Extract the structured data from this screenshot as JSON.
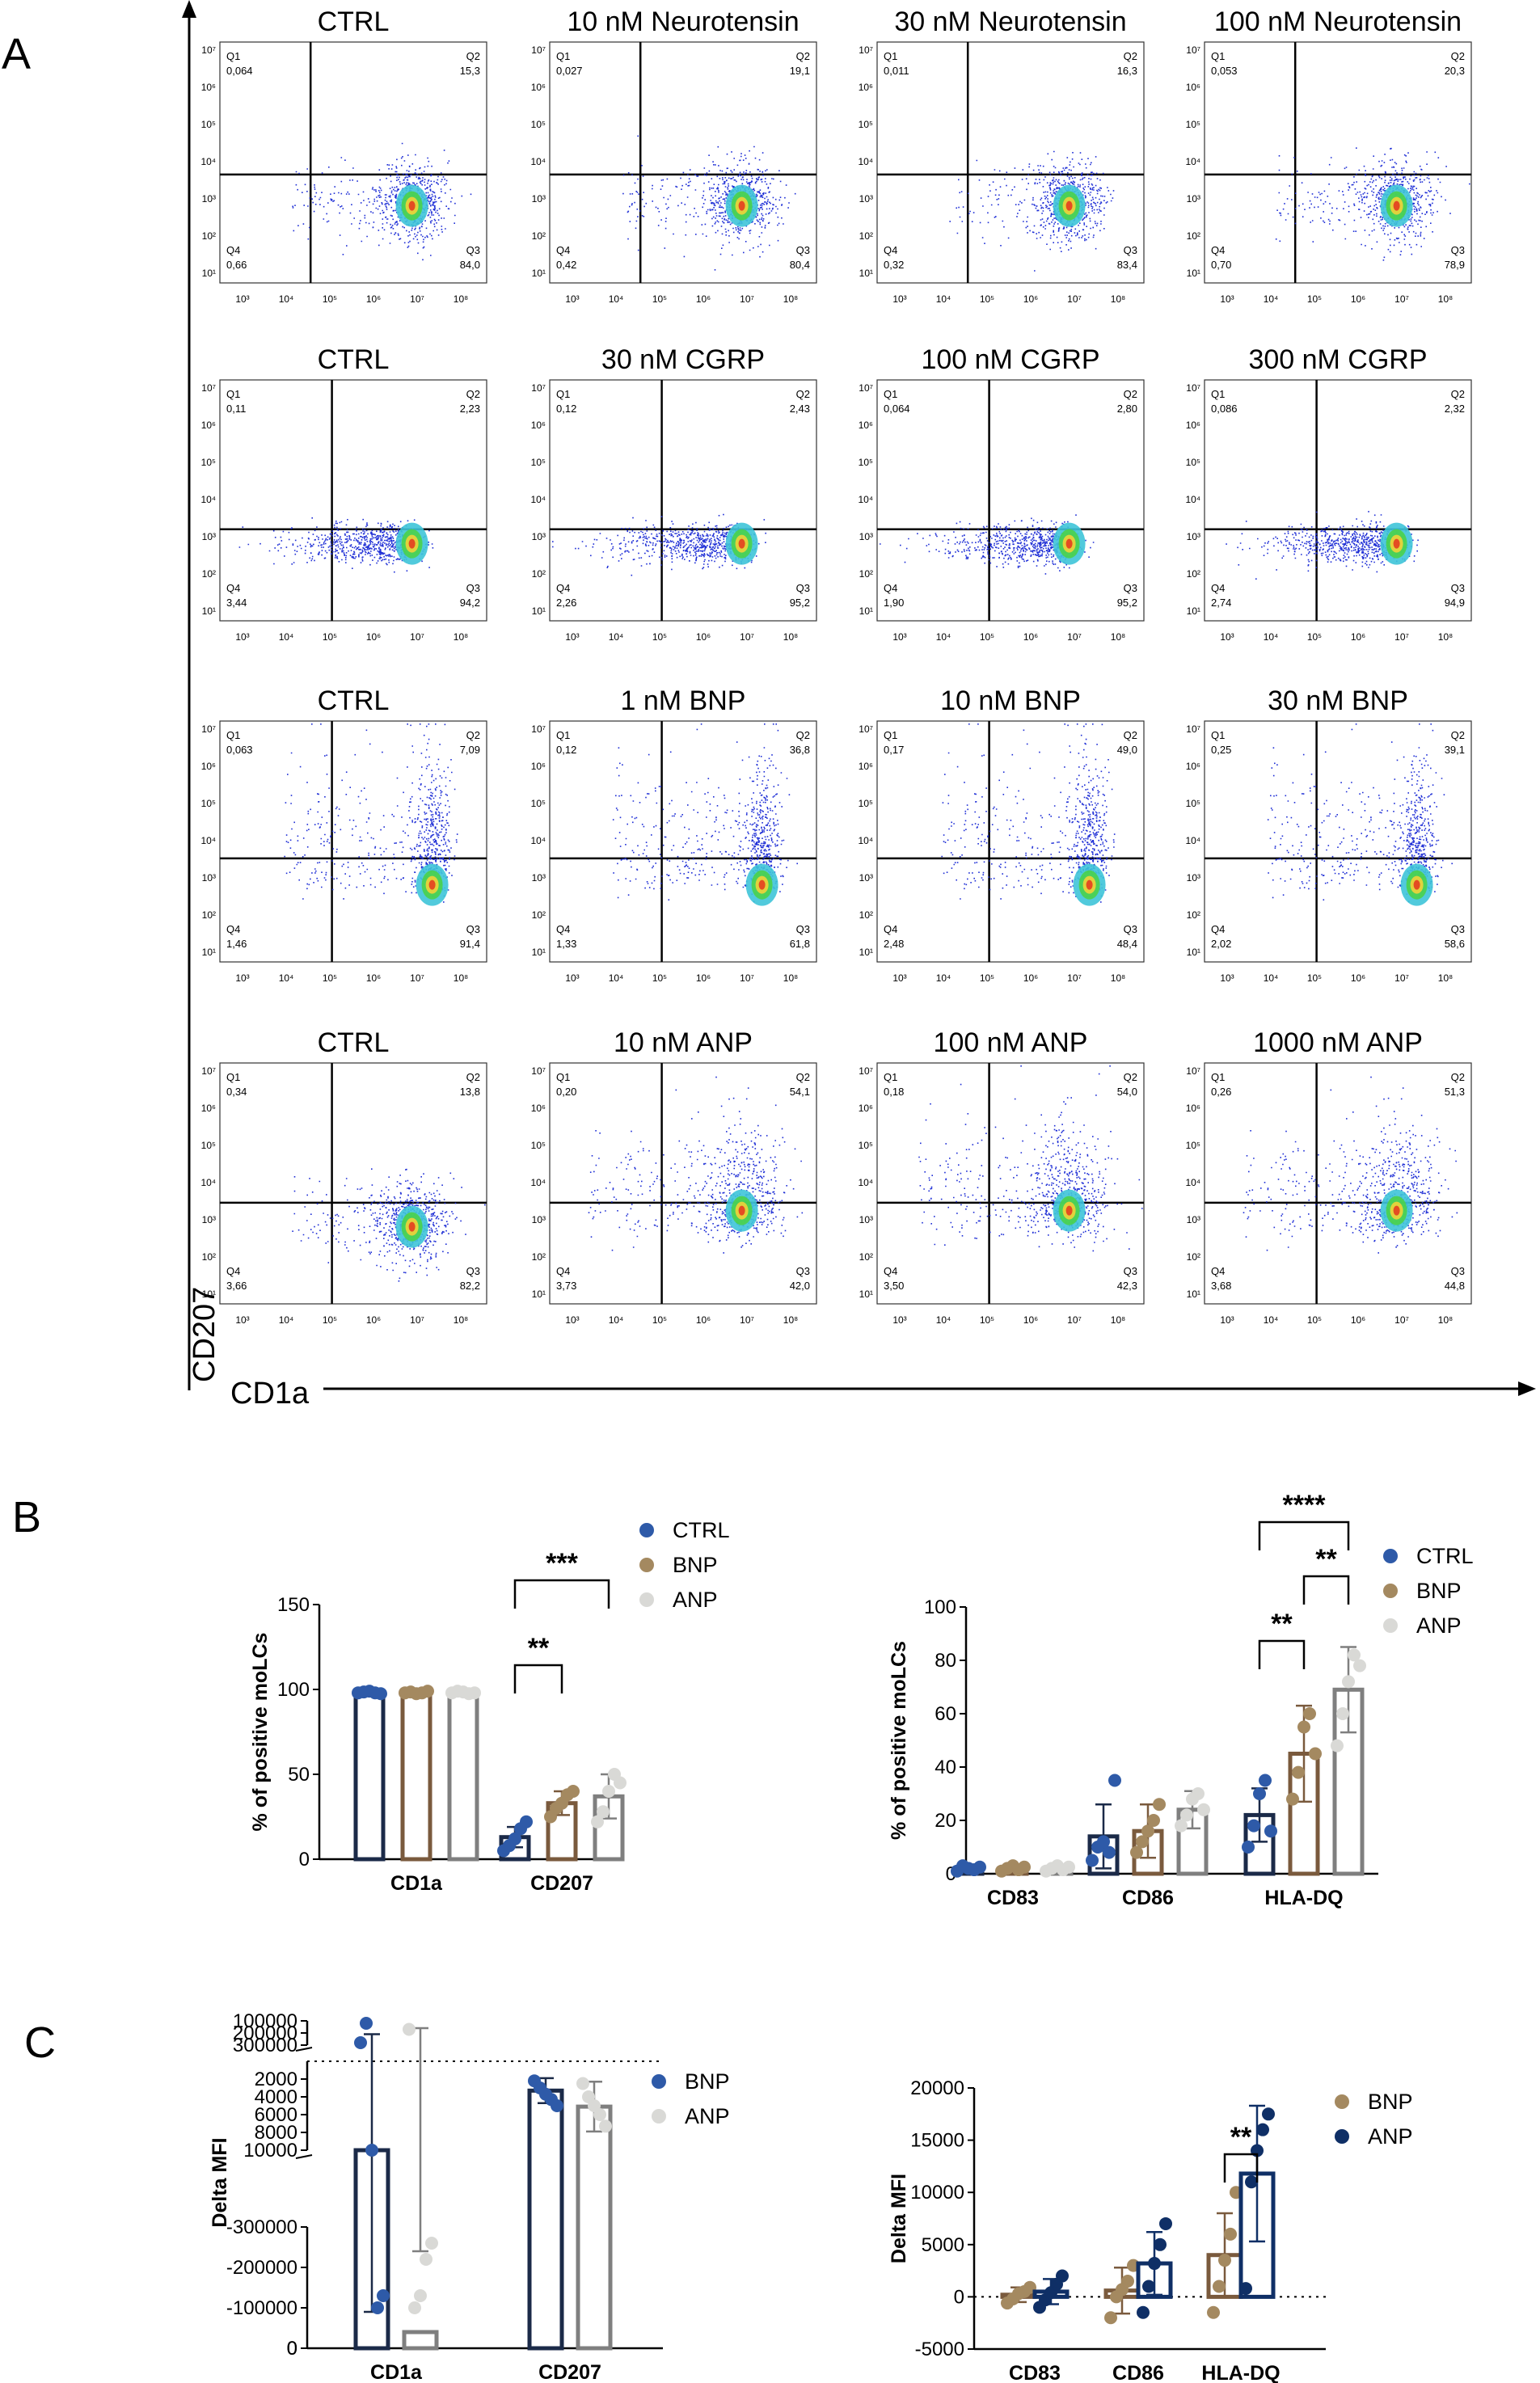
{
  "panels": {
    "a": "A",
    "b": "B",
    "c": "C"
  },
  "flow_axes": {
    "y_label": "CD207",
    "x_label": "CD1a"
  },
  "flow_grid": {
    "rows": [
      {
        "plots": [
          {
            "title": "CTRL",
            "q1": "0,064",
            "q2": "15,3",
            "q3": "84,0",
            "q4": "0,66"
          },
          {
            "title": "10 nM Neurotensin",
            "q1": "0,027",
            "q2": "19,1",
            "q3": "80,4",
            "q4": "0,42"
          },
          {
            "title": "30 nM Neurotensin",
            "q1": "0,011",
            "q2": "16,3",
            "q3": "83,4",
            "q4": "0,32"
          },
          {
            "title": "100 nM Neurotensin",
            "q1": "0,053",
            "q2": "20,3",
            "q3": "78,9",
            "q4": "0,70"
          }
        ]
      },
      {
        "plots": [
          {
            "title": "CTRL",
            "q1": "0,11",
            "q2": "2,23",
            "q3": "94,2",
            "q4": "3,44"
          },
          {
            "title": "30 nM CGRP",
            "q1": "0,12",
            "q2": "2,43",
            "q3": "95,2",
            "q4": "2,26"
          },
          {
            "title": "100 nM CGRP",
            "q1": "0,064",
            "q2": "2,80",
            "q3": "95,2",
            "q4": "1,90"
          },
          {
            "title": "300 nM CGRP",
            "q1": "0,086",
            "q2": "2,32",
            "q3": "94,9",
            "q4": "2,74"
          }
        ]
      },
      {
        "plots": [
          {
            "title": "CTRL",
            "q1": "0,063",
            "q2": "7,09",
            "q3": "91,4",
            "q4": "1,46"
          },
          {
            "title": "1 nM BNP",
            "q1": "0,12",
            "q2": "36,8",
            "q3": "61,8",
            "q4": "1,33"
          },
          {
            "title": "10 nM BNP",
            "q1": "0,17",
            "q2": "49,0",
            "q3": "48,4",
            "q4": "2,48"
          },
          {
            "title": "30 nM BNP",
            "q1": "0,25",
            "q2": "39,1",
            "q3": "58,6",
            "q4": "2,02"
          }
        ]
      },
      {
        "plots": [
          {
            "title": "CTRL",
            "q1": "0,34",
            "q2": "13,8",
            "q3": "82,2",
            "q4": "3,66"
          },
          {
            "title": "10 nM ANP",
            "q1": "0,20",
            "q2": "54,1",
            "q3": "42,0",
            "q4": "3,73"
          },
          {
            "title": "100 nM ANP",
            "q1": "0,18",
            "q2": "54,0",
            "q3": "42,3",
            "q4": "3,50"
          },
          {
            "title": "1000 nM ANP",
            "q1": "0,26",
            "q2": "51,3",
            "q3": "44,8",
            "q4": "3,68"
          }
        ]
      }
    ]
  },
  "colors": {
    "ctrl": "#2e5aa8",
    "bnp": "#a48960",
    "anp": "#d9d9d6",
    "ctrl_bar": "#1b2a48",
    "bnp_bar": "#7a5a3d",
    "anp_bar": "#7f7f7f",
    "navy": "#0f2f66"
  },
  "chart_data": [
    {
      "id": "B-left",
      "type": "bar",
      "ylabel": "% of positive moLCs",
      "xlabel": "",
      "ylim": [
        0,
        150
      ],
      "yticks": [
        "0",
        "50",
        "100",
        "150"
      ],
      "categories": [
        "CD1a",
        "CD207"
      ],
      "legend": [
        "CTRL",
        "BNP",
        "ANP"
      ],
      "series": [
        {
          "name": "CTRL",
          "values": [
            98,
            13
          ],
          "err": [
            1,
            6
          ],
          "points": [
            [
              98,
              98.5,
              99,
              98,
              97.5
            ],
            [
              5,
              8,
              12,
              18,
              22
            ]
          ]
        },
        {
          "name": "BNP",
          "values": [
            98,
            33
          ],
          "err": [
            1,
            7
          ],
          "points": [
            [
              98,
              98.5,
              97.5,
              98,
              99
            ],
            [
              25,
              30,
              33,
              38,
              40
            ]
          ]
        },
        {
          "name": "ANP",
          "values": [
            98,
            37
          ],
          "err": [
            1,
            13
          ],
          "points": [
            [
              98,
              99,
              98.5,
              97.5,
              98
            ],
            [
              22,
              28,
              40,
              50,
              45
            ]
          ]
        }
      ],
      "significance": [
        {
          "label": "**",
          "category": "CD207",
          "from": "CTRL",
          "to": "BNP"
        },
        {
          "label": "***",
          "category": "CD207",
          "from": "CTRL",
          "to": "ANP"
        }
      ]
    },
    {
      "id": "B-right",
      "type": "bar",
      "ylabel": "% of positive moLCs",
      "xlabel": "",
      "ylim": [
        0,
        100
      ],
      "yticks": [
        "0",
        "20",
        "40",
        "60",
        "80",
        "100"
      ],
      "categories": [
        "CD83",
        "CD86",
        "HLA-DQ"
      ],
      "legend": [
        "CTRL",
        "BNP",
        "ANP"
      ],
      "series": [
        {
          "name": "CTRL",
          "values": [
            2,
            14,
            22
          ],
          "err": [
            1,
            12,
            10
          ],
          "points": [
            [
              1,
              3,
              2,
              1.5,
              2.5
            ],
            [
              5,
              10,
              12,
              8,
              35
            ],
            [
              10,
              18,
              30,
              35,
              16
            ]
          ]
        },
        {
          "name": "BNP",
          "values": [
            2,
            16,
            45
          ],
          "err": [
            1,
            10,
            18
          ],
          "points": [
            [
              1,
              2,
              3,
              1.5,
              2.5
            ],
            [
              8,
              12,
              16,
              20,
              26
            ],
            [
              28,
              38,
              55,
              60,
              45
            ]
          ]
        },
        {
          "name": "ANP",
          "values": [
            2,
            24,
            69
          ],
          "err": [
            1,
            7,
            16
          ],
          "points": [
            [
              1,
              2,
              3,
              1.5,
              2.5
            ],
            [
              18,
              22,
              28,
              30,
              24
            ],
            [
              48,
              60,
              72,
              82,
              78
            ]
          ]
        }
      ],
      "significance": [
        {
          "label": "**",
          "category": "HLA-DQ",
          "from": "CTRL",
          "to": "BNP"
        },
        {
          "label": "**",
          "category": "HLA-DQ",
          "from": "BNP",
          "to": "ANP"
        },
        {
          "label": "****",
          "category": "HLA-DQ",
          "from": "CTRL",
          "to": "ANP"
        }
      ]
    },
    {
      "id": "C-left",
      "type": "bar",
      "ylabel": "Delta MFI",
      "xlabel": "",
      "y_segments": [
        {
          "range": [
            -300000,
            0
          ],
          "ticks": [
            "0",
            "-100000",
            "-200000",
            "-300000"
          ]
        },
        {
          "range": [
            0,
            10000
          ],
          "ticks": [
            "0",
            "2000",
            "4000",
            "6000",
            "8000",
            "10000"
          ]
        },
        {
          "range": [
            100000,
            300000
          ],
          "ticks": [
            "100000",
            "200000",
            "300000"
          ]
        }
      ],
      "categories": [
        "CD1a",
        "CD207"
      ],
      "legend": [
        "BNP",
        "ANP"
      ],
      "series": [
        {
          "name": "BNP",
          "values": [
            60000,
            3300
          ],
          "err": [
            150000,
            1400
          ],
          "points": [
            [
              280000,
              120000,
              60000,
              -100000,
              -130000
            ],
            [
              2200,
              3000,
              3700,
              4300,
              5000
            ]
          ]
        },
        {
          "name": "ANP",
          "values": [
            -40000,
            5100
          ],
          "err": [
            200000,
            2800
          ],
          "points": [
            [
              170000,
              -100000,
              -130000,
              -220000,
              -260000
            ],
            [
              2500,
              4000,
              5000,
              6000,
              7300
            ]
          ]
        }
      ]
    },
    {
      "id": "C-right",
      "type": "bar",
      "ylabel": "Delta MFI",
      "xlabel": "",
      "ylim": [
        -5000,
        20000
      ],
      "yticks": [
        "-5000",
        "0",
        "5000",
        "10000",
        "15000",
        "20000"
      ],
      "categories": [
        "CD83",
        "CD86",
        "HLA-DQ"
      ],
      "legend": [
        "BNP",
        "ANP"
      ],
      "series": [
        {
          "name": "BNP",
          "values": [
            200,
            600,
            4000
          ],
          "err": [
            700,
            2200,
            4000
          ],
          "points": [
            [
              -600,
              -200,
              300,
              500,
              900
            ],
            [
              -2000,
              0,
              700,
              1500,
              3000
            ],
            [
              -1500,
              1000,
              3500,
              6000,
              10000
            ]
          ]
        },
        {
          "name": "ANP",
          "values": [
            500,
            3200,
            11800
          ],
          "err": [
            1200,
            3000,
            6500
          ],
          "points": [
            [
              -1000,
              -300,
              400,
              1200,
              2000
            ],
            [
              -1500,
              1000,
              3200,
              5000,
              7000
            ],
            [
              800,
              11000,
              14000,
              16000,
              17500
            ]
          ]
        }
      ],
      "significance": [
        {
          "label": "**",
          "category": "HLA-DQ",
          "from": "BNP",
          "to": "ANP"
        }
      ]
    }
  ]
}
